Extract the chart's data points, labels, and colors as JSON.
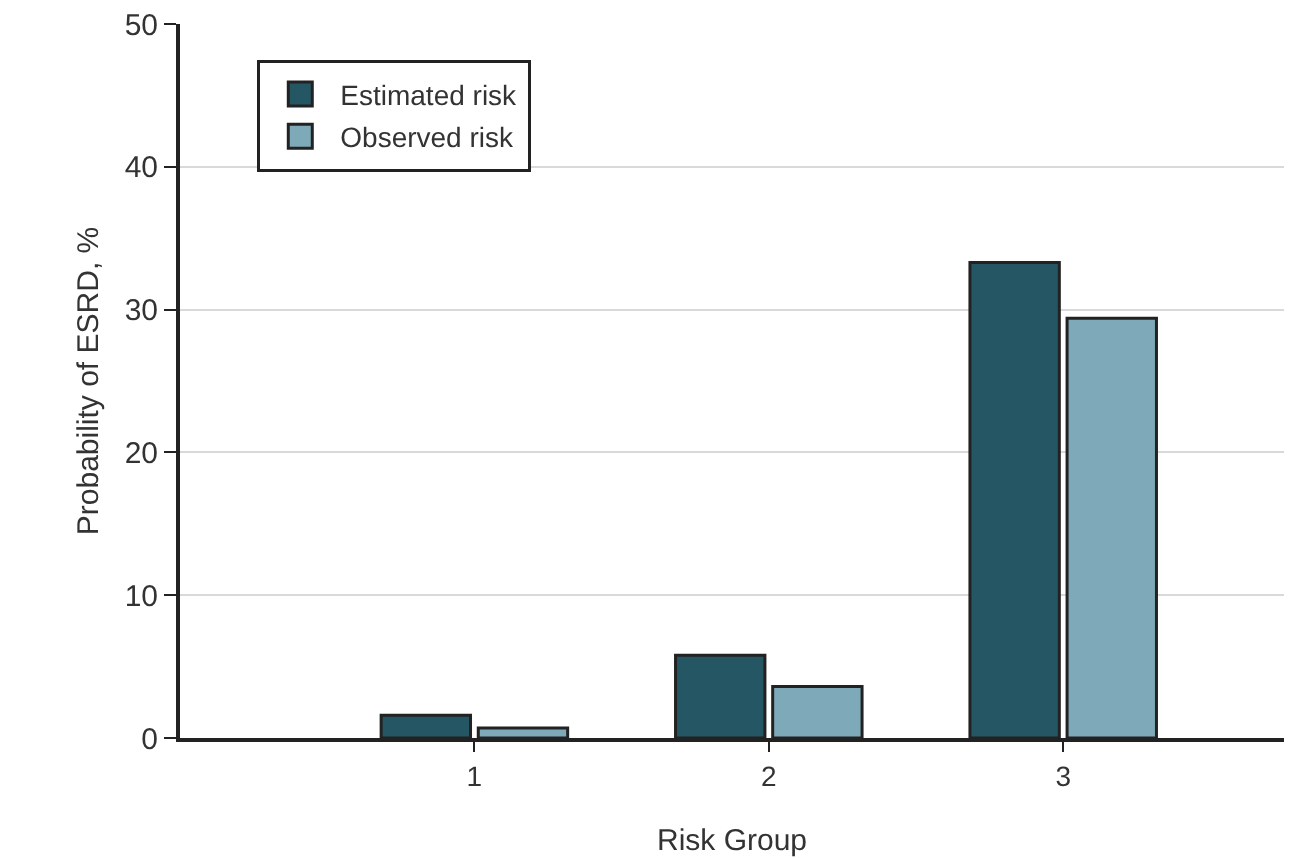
{
  "chart_data": {
    "type": "bar",
    "xlabel": "Risk Group",
    "ylabel": "Probability of ESRD, %",
    "categories": [
      "1",
      "2",
      "3"
    ],
    "series": [
      {
        "name": "Estimated risk",
        "color": "#245763",
        "values": [
          1.6,
          5.8,
          33.3
        ]
      },
      {
        "name": "Observed risk",
        "color": "#7ea9b8",
        "values": [
          0.7,
          3.6,
          29.4
        ]
      }
    ],
    "ylim": [
      0,
      50
    ],
    "yticks": [
      0,
      10,
      20,
      30,
      40,
      50
    ],
    "grid": "y",
    "legend": "top left"
  }
}
